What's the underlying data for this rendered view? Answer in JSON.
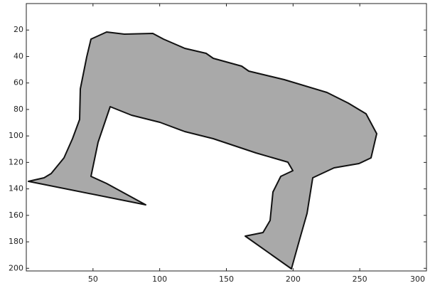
{
  "chart_data": {
    "type": "image",
    "xlim": [
      0,
      300
    ],
    "xticks": [
      50,
      100,
      150,
      200,
      250,
      300
    ],
    "ylim": [
      0,
      202
    ],
    "yticks": [
      20,
      40,
      60,
      80,
      100,
      120,
      140,
      160,
      180,
      200
    ],
    "y_reversed": true,
    "color": "#a9a9a9"
  }
}
